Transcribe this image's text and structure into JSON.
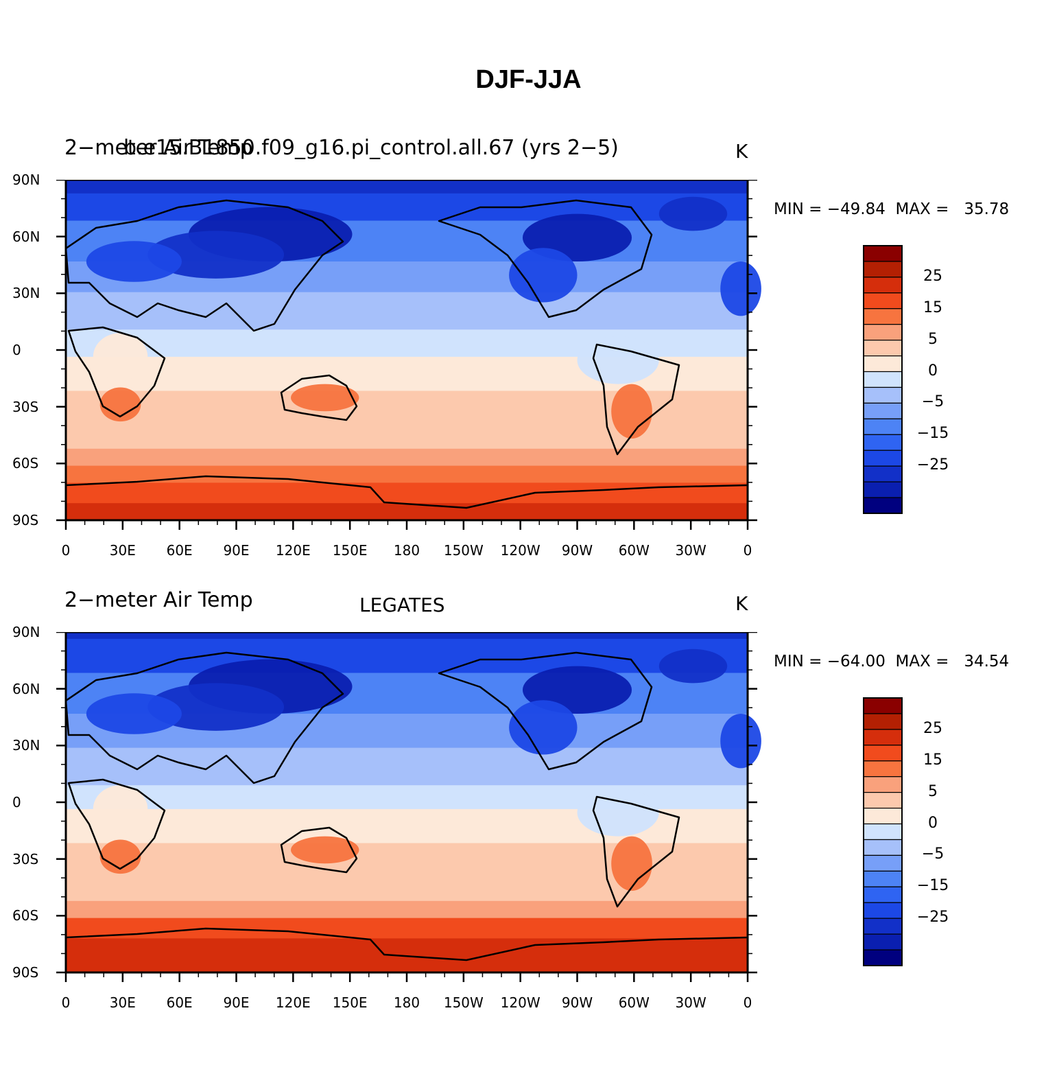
{
  "title": "DJF-JJA",
  "colorbar": {
    "colors": [
      "#00007f",
      "#0a1fb0",
      "#1230c8",
      "#1c48e6",
      "#2f64f2",
      "#4d83f5",
      "#779ff8",
      "#a6c0fa",
      "#d0e3fd",
      "#fde9d9",
      "#fcc9ad",
      "#f9a17c",
      "#f7743f",
      "#f14b1d",
      "#d52e0c",
      "#b32003",
      "#8a0000"
    ],
    "labels": [
      "25",
      "15",
      "5",
      "0",
      "−5",
      "−15",
      "−25"
    ]
  },
  "lat_labels": [
    "90N",
    "60N",
    "30N",
    "0",
    "30S",
    "60S",
    "90S"
  ],
  "lon_labels": [
    "0",
    "30E",
    "60E",
    "90E",
    "120E",
    "150E",
    "180",
    "150W",
    "120W",
    "90W",
    "60W",
    "30W",
    "0"
  ],
  "panels": [
    {
      "left_label": "2−meter Air Temp",
      "left_label_overlap": "b.e15.B1850.f09_g16.pi_control.all.67 (yrs 2−5)",
      "center_label": "",
      "units": "K",
      "min": "−49.84",
      "max": "35.78"
    },
    {
      "left_label": "2−meter Air Temp",
      "left_label_overlap": "",
      "center_label": "LEGATES",
      "units": "K",
      "min": "−64.00",
      "max": "34.54"
    }
  ]
}
